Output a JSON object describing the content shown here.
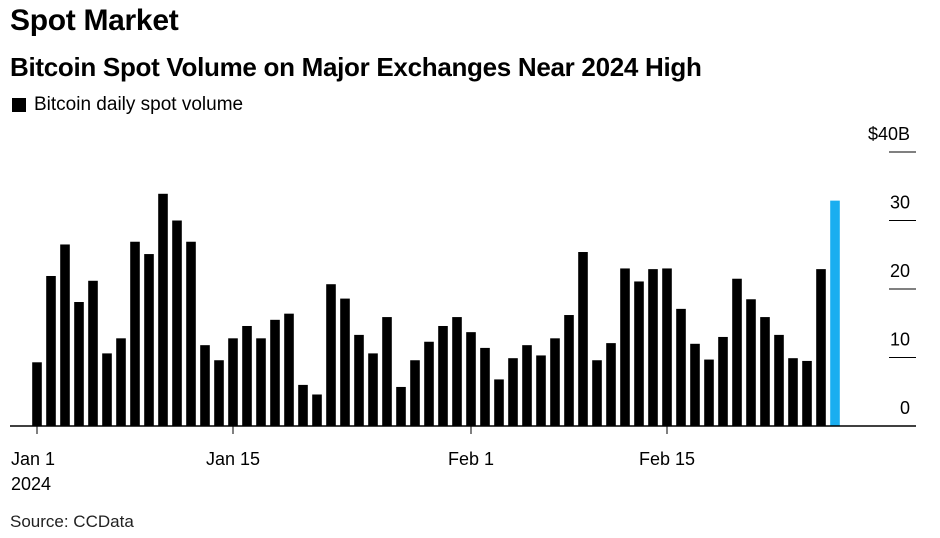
{
  "header": {
    "kicker": "Spot Market",
    "title": "Bitcoin Spot Volume on Major Exchanges Near 2024 High"
  },
  "legend": {
    "label": "Bitcoin daily spot volume"
  },
  "footer": {
    "source": "Source: CCData"
  },
  "colors": {
    "bar": "#000000",
    "highlight": "#1aaef0"
  },
  "chart_data": {
    "type": "bar",
    "title": "Bitcoin Spot Volume on Major Exchanges Near 2024 High",
    "ylabel": "",
    "xlabel": "",
    "ylim": [
      0,
      40
    ],
    "ytick_values": [
      0,
      10,
      20,
      30,
      40
    ],
    "ytick_labels": [
      "0",
      "10",
      "20",
      "30",
      "$40B"
    ],
    "x_tick_categories": [
      "Jan 1",
      "Jan 15",
      "Feb 1",
      "Feb 15"
    ],
    "x_tick_labels": [
      "Jan 1",
      "Jan 15",
      "Feb 1",
      "Feb 15"
    ],
    "x_tick_sublabel": "2024",
    "highlight_index": 57,
    "categories": [
      "Jan 1",
      "Jan 2",
      "Jan 3",
      "Jan 4",
      "Jan 5",
      "Jan 6",
      "Jan 7",
      "Jan 8",
      "Jan 9",
      "Jan 10",
      "Jan 11",
      "Jan 12",
      "Jan 13",
      "Jan 14",
      "Jan 15",
      "Jan 16",
      "Jan 17",
      "Jan 18",
      "Jan 19",
      "Jan 20",
      "Jan 21",
      "Jan 22",
      "Jan 23",
      "Jan 24",
      "Jan 25",
      "Jan 26",
      "Jan 27",
      "Jan 28",
      "Jan 29",
      "Jan 30",
      "Jan 31",
      "Feb 1",
      "Feb 2",
      "Feb 3",
      "Feb 4",
      "Feb 5",
      "Feb 6",
      "Feb 7",
      "Feb 8",
      "Feb 9",
      "Feb 10",
      "Feb 11",
      "Feb 12",
      "Feb 13",
      "Feb 14",
      "Feb 15",
      "Feb 16",
      "Feb 17",
      "Feb 18",
      "Feb 19",
      "Feb 20",
      "Feb 21",
      "Feb 22",
      "Feb 23",
      "Feb 24",
      "Feb 25",
      "Feb 26",
      "Feb 27"
    ],
    "series": [
      {
        "name": "Bitcoin daily spot volume",
        "values": [
          9.3,
          21.9,
          26.5,
          18.1,
          21.2,
          10.6,
          12.8,
          26.9,
          25.1,
          33.9,
          30.0,
          26.9,
          11.8,
          9.6,
          12.8,
          14.6,
          12.8,
          15.5,
          16.4,
          6.0,
          4.6,
          20.7,
          18.6,
          13.3,
          10.6,
          15.9,
          5.7,
          9.6,
          12.3,
          14.6,
          15.9,
          13.7,
          11.4,
          6.8,
          9.9,
          11.8,
          10.3,
          12.8,
          16.2,
          25.4,
          9.6,
          12.1,
          23.0,
          21.1,
          22.9,
          23.0,
          17.1,
          12.0,
          9.7,
          13.0,
          21.5,
          18.5,
          15.9,
          13.3,
          9.9,
          9.5,
          22.9,
          32.9
        ]
      }
    ]
  }
}
